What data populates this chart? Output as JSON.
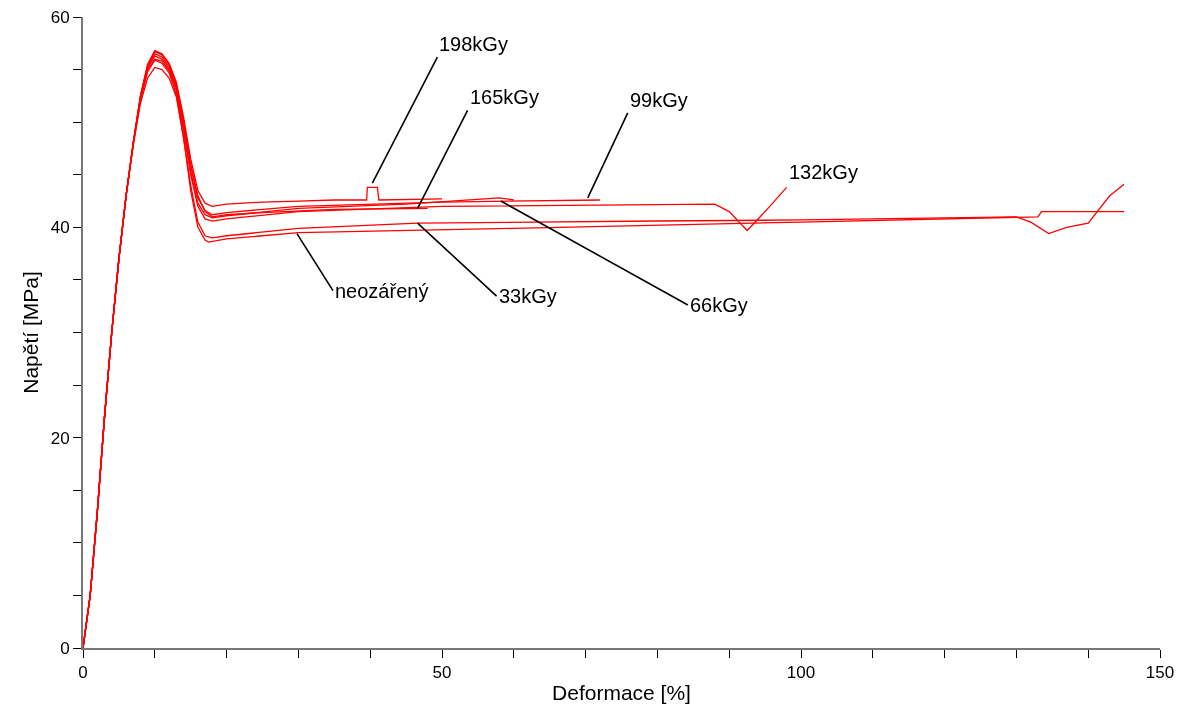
{
  "chart_data": {
    "type": "line",
    "xlabel": "Deformace [%]",
    "ylabel": "Napětí [MPa]",
    "xlim": [
      0,
      150
    ],
    "ylim": [
      0,
      60
    ],
    "xticks": [
      0,
      {
        "value": 10,
        "label": null
      },
      {
        "value": 20,
        "label": null
      },
      {
        "value": 30,
        "label": null
      },
      {
        "value": 40,
        "label": null
      },
      50,
      {
        "value": 60,
        "label": null
      },
      {
        "value": 70,
        "label": null
      },
      {
        "value": 80,
        "label": null
      },
      {
        "value": 90,
        "label": null
      },
      100,
      {
        "value": 110,
        "label": null
      },
      {
        "value": 120,
        "label": null
      },
      {
        "value": 130,
        "label": null
      },
      {
        "value": 140,
        "label": null
      },
      150
    ],
    "yticks": [
      0,
      {
        "value": 5,
        "label": null
      },
      {
        "value": 10,
        "label": null
      },
      {
        "value": 15,
        "label": null
      },
      20,
      {
        "value": 25,
        "label": null
      },
      {
        "value": 30,
        "label": null
      },
      {
        "value": 35,
        "label": null
      },
      40,
      {
        "value": 45,
        "label": null
      },
      {
        "value": 50,
        "label": null
      },
      {
        "value": 55,
        "label": null
      },
      60
    ],
    "grid": false,
    "marker": "none",
    "line_style": "solid",
    "series": [
      {
        "color": "#ff0000",
        "x": [
          0,
          1,
          2,
          3,
          4,
          5,
          6,
          7,
          8,
          9,
          10,
          11,
          12,
          13,
          14,
          15,
          16,
          17,
          18,
          20,
          25,
          30,
          35,
          39.5,
          39.6,
          41,
          41.2,
          50
        ],
        "values": [
          0,
          5,
          13,
          22,
          30,
          37,
          43,
          48,
          52.5,
          55.5,
          56.8,
          56.5,
          55.6,
          53.8,
          50.5,
          46.5,
          43.5,
          42.3,
          42,
          42.2,
          42.4,
          42.5,
          42.6,
          42.6,
          43.8,
          43.8,
          42.6,
          42.7
        ]
      },
      {
        "color": "#ff0000",
        "x": [
          0,
          1,
          2,
          3,
          4,
          5,
          6,
          7,
          8,
          9,
          10,
          11,
          12,
          13,
          14,
          15,
          16,
          17,
          18,
          20,
          25,
          35,
          48
        ],
        "values": [
          0,
          5,
          13,
          22,
          30,
          37,
          43,
          48,
          52.5,
          55.4,
          56.7,
          56.4,
          55.5,
          53.6,
          50.2,
          46,
          43,
          41.5,
          41,
          41.2,
          41.4,
          41.7,
          41.8
        ]
      },
      {
        "color": "#ff0000",
        "x": [
          0,
          1,
          2,
          3,
          4,
          5,
          6,
          7,
          8,
          9,
          10,
          11,
          12,
          13,
          14,
          15,
          16,
          17,
          18,
          20,
          30,
          50,
          72
        ],
        "values": [
          0,
          5,
          13,
          22,
          30,
          37,
          43,
          48,
          52.4,
          55.3,
          56.5,
          56.2,
          55.3,
          53.4,
          50,
          45.8,
          42.8,
          41.6,
          41.2,
          41.4,
          42,
          42.4,
          42.6
        ]
      },
      {
        "color": "#ff0000",
        "x": [
          0,
          1,
          2,
          3,
          4,
          5,
          6,
          7,
          8,
          9,
          10,
          11,
          12,
          13,
          14,
          15,
          16,
          17,
          18,
          20,
          30,
          45,
          58,
          60
        ],
        "values": [
          0,
          5,
          13,
          22,
          30,
          37,
          43,
          48,
          52.3,
          55.1,
          56.3,
          56,
          55.1,
          53.2,
          49.6,
          45.3,
          42.3,
          41.2,
          40.9,
          41.1,
          41.8,
          42.2,
          42.8,
          42.6
        ]
      },
      {
        "color": "#ff0000",
        "x": [
          0,
          1,
          2,
          3,
          4,
          5,
          6,
          7,
          8,
          9,
          10,
          11,
          12,
          13,
          14,
          15,
          16,
          17,
          18,
          20,
          30,
          50,
          88,
          90,
          92.5,
          95,
          98
        ],
        "values": [
          0,
          5,
          13,
          22,
          30,
          37,
          43,
          48,
          52.2,
          54.9,
          56,
          55.8,
          54.9,
          53,
          49.2,
          45,
          42,
          40.8,
          40.6,
          40.8,
          41.5,
          42,
          42.2,
          41.5,
          39.7,
          41.5,
          43.8
        ]
      },
      {
        "color": "#ff0000",
        "x": [
          0,
          1,
          2,
          3,
          4,
          5,
          6,
          7,
          8,
          9,
          10,
          11,
          12,
          13,
          14,
          15,
          16,
          17,
          18,
          20,
          30,
          46.6,
          80,
          100,
          130,
          132,
          134.5,
          137,
          140,
          143,
          145
        ],
        "values": [
          0,
          5,
          13,
          22,
          30,
          37,
          43,
          48,
          52.1,
          54.8,
          55.9,
          55.6,
          54.7,
          52.6,
          48.5,
          44,
          40.5,
          39.2,
          39,
          39.2,
          39.9,
          40.4,
          40.6,
          40.7,
          41,
          40.5,
          39.4,
          40,
          40.4,
          43,
          44.1
        ]
      },
      {
        "color": "#ff0000",
        "x": [
          0,
          1,
          2,
          3,
          4,
          5,
          6,
          7,
          8,
          9,
          10,
          11,
          12,
          13,
          14,
          15,
          16,
          17,
          17.5,
          20,
          30,
          60,
          100,
          133,
          133.5,
          145
        ],
        "values": [
          0,
          5,
          13,
          22,
          30,
          37,
          43,
          47.8,
          51.8,
          54.2,
          55.2,
          55,
          54.2,
          52.4,
          48.6,
          43.5,
          40,
          38.8,
          38.6,
          38.9,
          39.5,
          39.9,
          40.5,
          41,
          41.5,
          41.5
        ]
      }
    ],
    "annotations": [
      {
        "text": "198kGy",
        "x": 40.3,
        "y": 44.2
      },
      {
        "text": "165kGy",
        "x": 46.6,
        "y": 41.8
      },
      {
        "text": "99kGy",
        "x": 70.3,
        "y": 42.8
      },
      {
        "text": "132kGy",
        "x": 98,
        "y": 43.8
      },
      {
        "text": "66kGy",
        "x": 58.2,
        "y": 42.5
      },
      {
        "text": "33kGy",
        "x": 46.6,
        "y": 40.4
      },
      {
        "text": "neozářený",
        "x": 29.8,
        "y": 39.4
      }
    ]
  }
}
